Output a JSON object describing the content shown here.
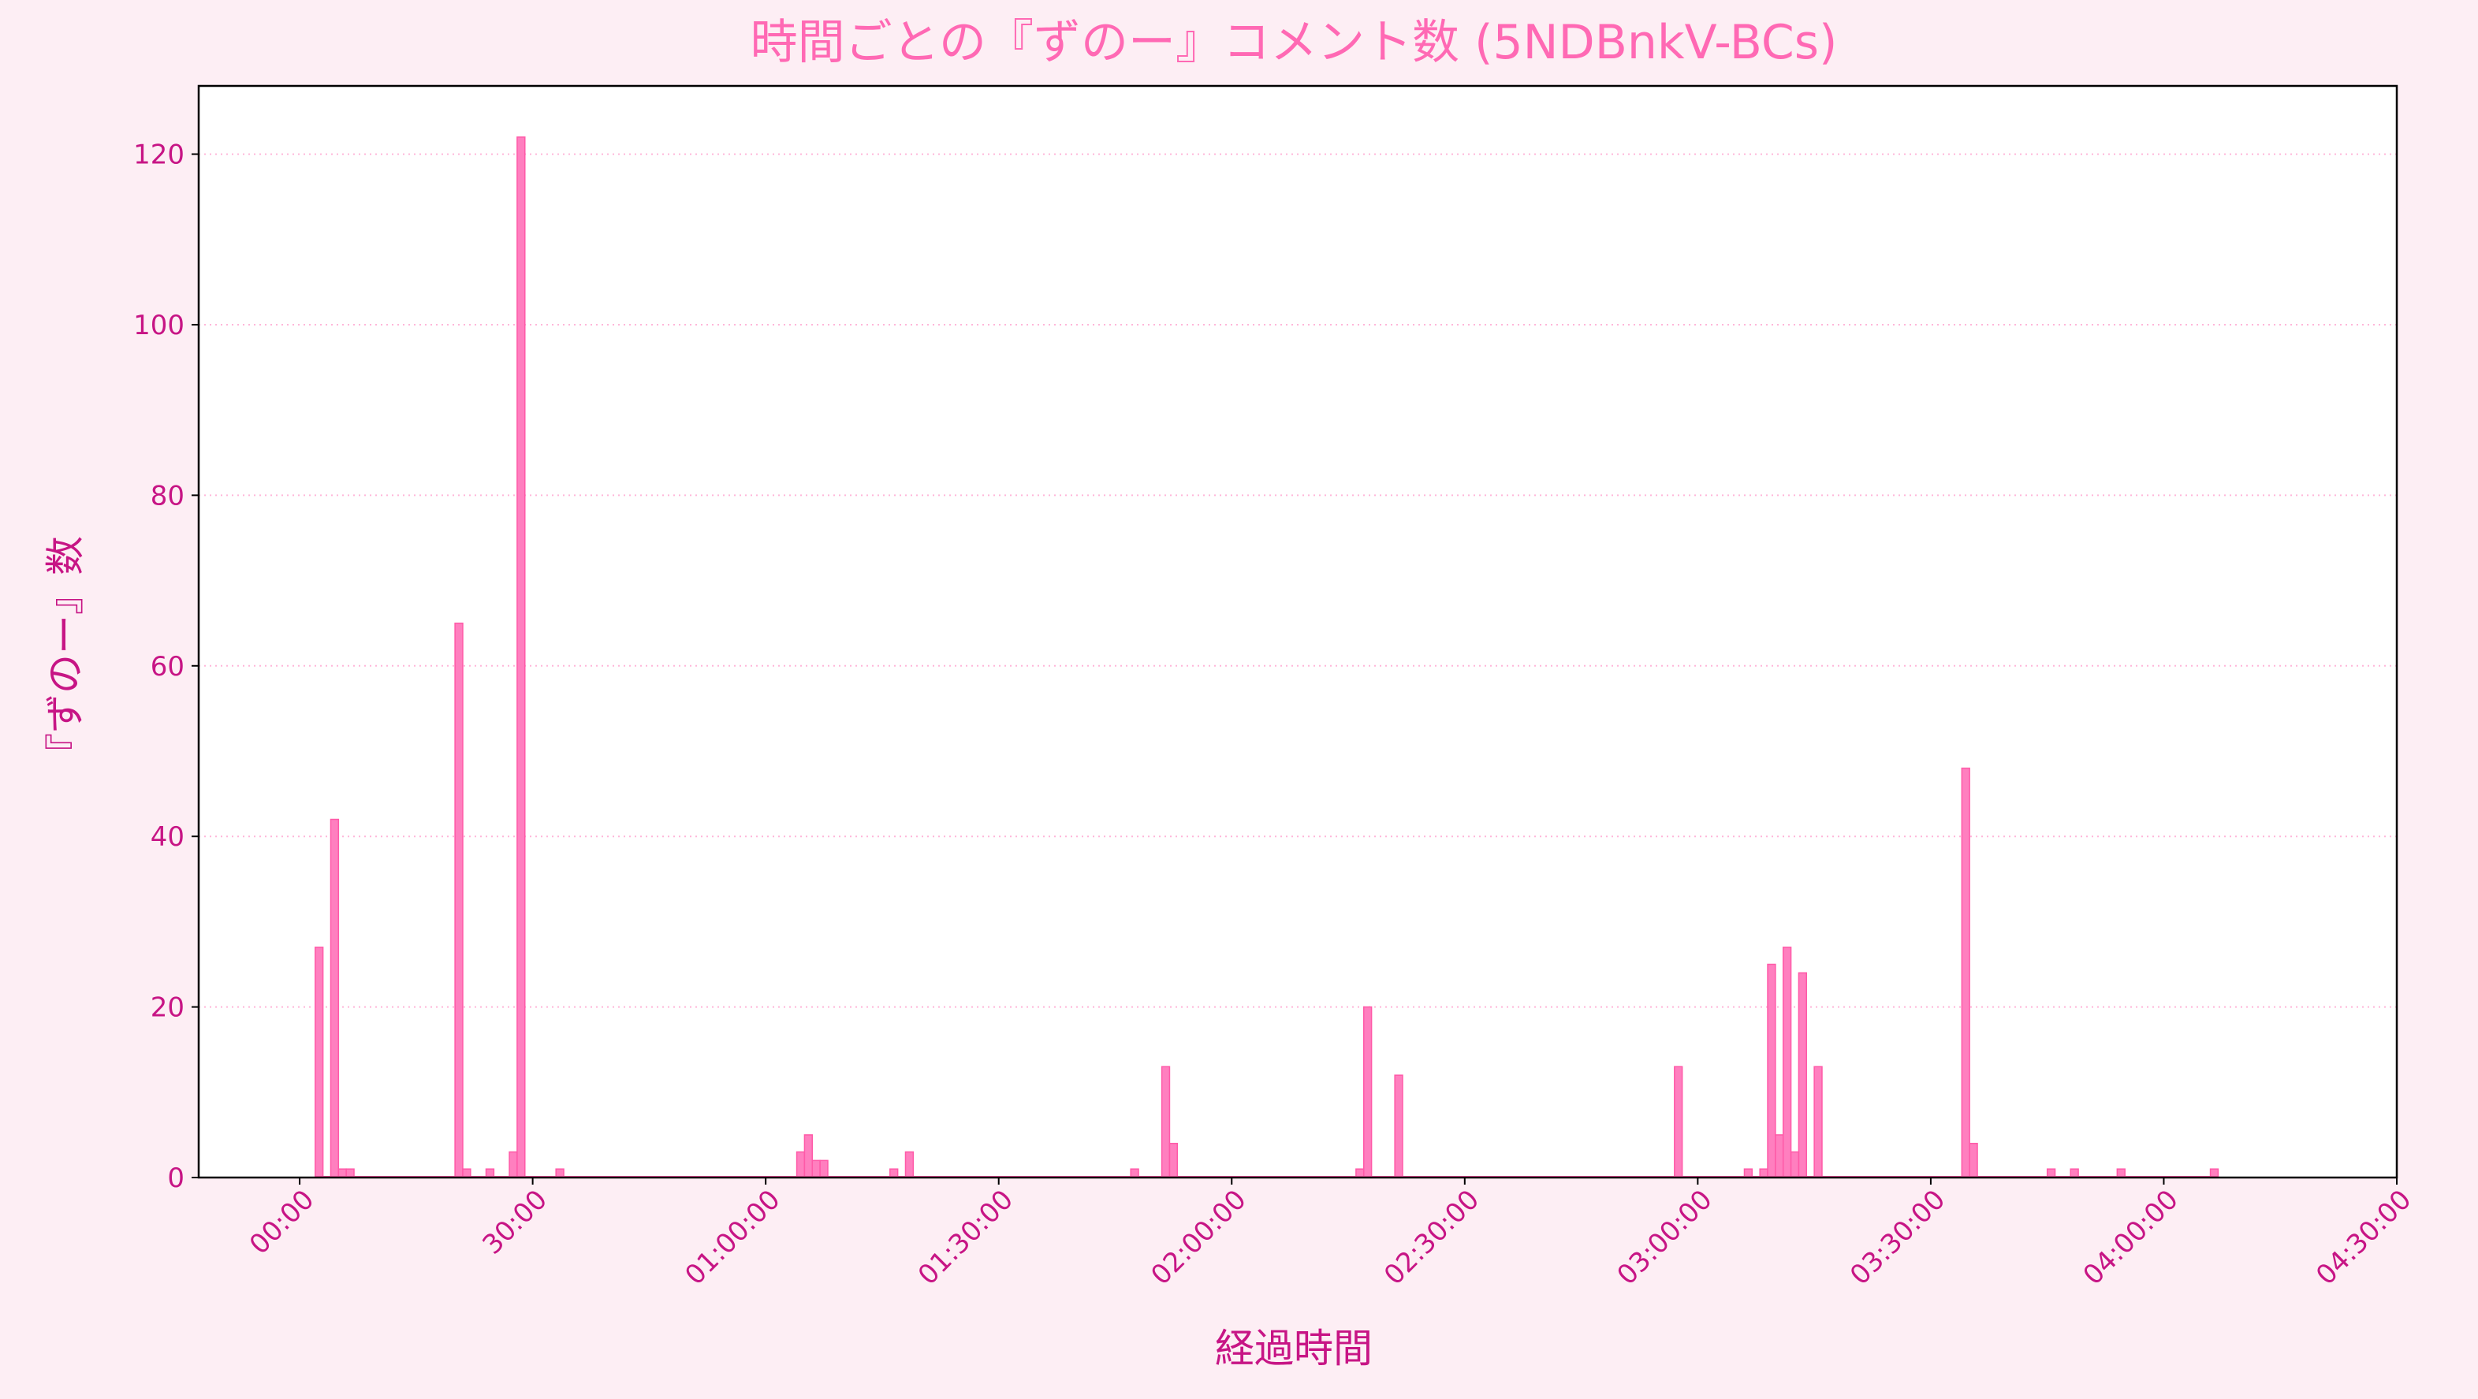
{
  "chart_data": {
    "type": "bar",
    "title": "時間ごとの『ずのー』コメント数 (5NDBnkV-BCs)",
    "xlabel": "経過時間",
    "ylabel": "『ずのー』数",
    "bin_minutes": 1,
    "xlim_minutes": [
      -13,
      270
    ],
    "ylim": [
      0,
      128
    ],
    "yticks": [
      0,
      20,
      40,
      60,
      80,
      100,
      120
    ],
    "xticks": [
      {
        "minute": 0,
        "label": "00:00"
      },
      {
        "minute": 30,
        "label": "30:00"
      },
      {
        "minute": 60,
        "label": "01:00:00"
      },
      {
        "minute": 90,
        "label": "01:30:00"
      },
      {
        "minute": 120,
        "label": "02:00:00"
      },
      {
        "minute": 150,
        "label": "02:30:00"
      },
      {
        "minute": 180,
        "label": "03:00:00"
      },
      {
        "minute": 210,
        "label": "03:30:00"
      },
      {
        "minute": 240,
        "label": "04:00:00"
      },
      {
        "minute": 270,
        "label": "04:30:00"
      }
    ],
    "grid": "y-dotted",
    "colors": {
      "bar_fill": "#ff7fbf",
      "bar_edge": "#ff5aa8",
      "text": "#c71585",
      "title": "#ff69b4",
      "grid": "#ffb6d9",
      "background": "#fdeef4",
      "plot_background": "#ffffff"
    },
    "bars": [
      {
        "minute": 2,
        "value": 27
      },
      {
        "minute": 4,
        "value": 42
      },
      {
        "minute": 5,
        "value": 1
      },
      {
        "minute": 6,
        "value": 1
      },
      {
        "minute": 20,
        "value": 65
      },
      {
        "minute": 21,
        "value": 1
      },
      {
        "minute": 24,
        "value": 1
      },
      {
        "minute": 27,
        "value": 3
      },
      {
        "minute": 28,
        "value": 122
      },
      {
        "minute": 33,
        "value": 1
      },
      {
        "minute": 64,
        "value": 3
      },
      {
        "minute": 65,
        "value": 5
      },
      {
        "minute": 66,
        "value": 2
      },
      {
        "minute": 67,
        "value": 2
      },
      {
        "minute": 76,
        "value": 1
      },
      {
        "minute": 78,
        "value": 3
      },
      {
        "minute": 107,
        "value": 1
      },
      {
        "minute": 111,
        "value": 13
      },
      {
        "minute": 112,
        "value": 4
      },
      {
        "minute": 136,
        "value": 1
      },
      {
        "minute": 137,
        "value": 20
      },
      {
        "minute": 141,
        "value": 12
      },
      {
        "minute": 177,
        "value": 13
      },
      {
        "minute": 186,
        "value": 1
      },
      {
        "minute": 188,
        "value": 1
      },
      {
        "minute": 189,
        "value": 25
      },
      {
        "minute": 190,
        "value": 5
      },
      {
        "minute": 191,
        "value": 27
      },
      {
        "minute": 192,
        "value": 3
      },
      {
        "minute": 193,
        "value": 24
      },
      {
        "minute": 195,
        "value": 13
      },
      {
        "minute": 214,
        "value": 48
      },
      {
        "minute": 215,
        "value": 4
      },
      {
        "minute": 225,
        "value": 1
      },
      {
        "minute": 228,
        "value": 1
      },
      {
        "minute": 234,
        "value": 1
      },
      {
        "minute": 246,
        "value": 1
      }
    ]
  }
}
